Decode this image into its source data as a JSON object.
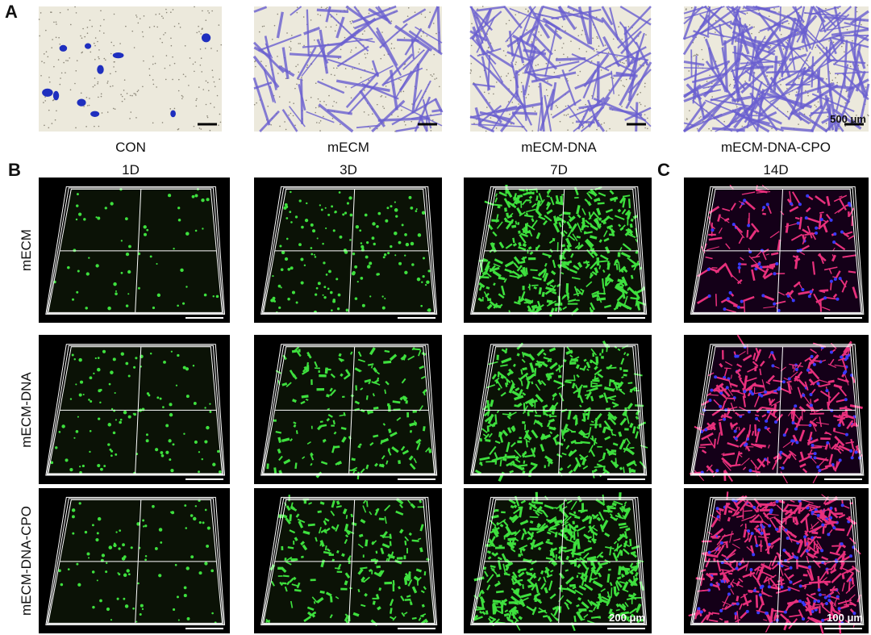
{
  "panel_labels": [
    "A",
    "B",
    "C"
  ],
  "panel_a": {
    "images": [
      {
        "label": "CON"
      },
      {
        "label": "mECM"
      },
      {
        "label": "mECM-DNA"
      },
      {
        "label": "mECM-DNA-CPO"
      }
    ],
    "scale_label": "500 μm"
  },
  "panel_b": {
    "columns": [
      "1D",
      "3D",
      "7D"
    ],
    "rows": [
      "mECM",
      "mECM-DNA",
      "mECM-DNA-CPO"
    ],
    "scale_label": "200 μm"
  },
  "panel_c": {
    "column": "14D",
    "scale_label": "100 μm"
  }
}
